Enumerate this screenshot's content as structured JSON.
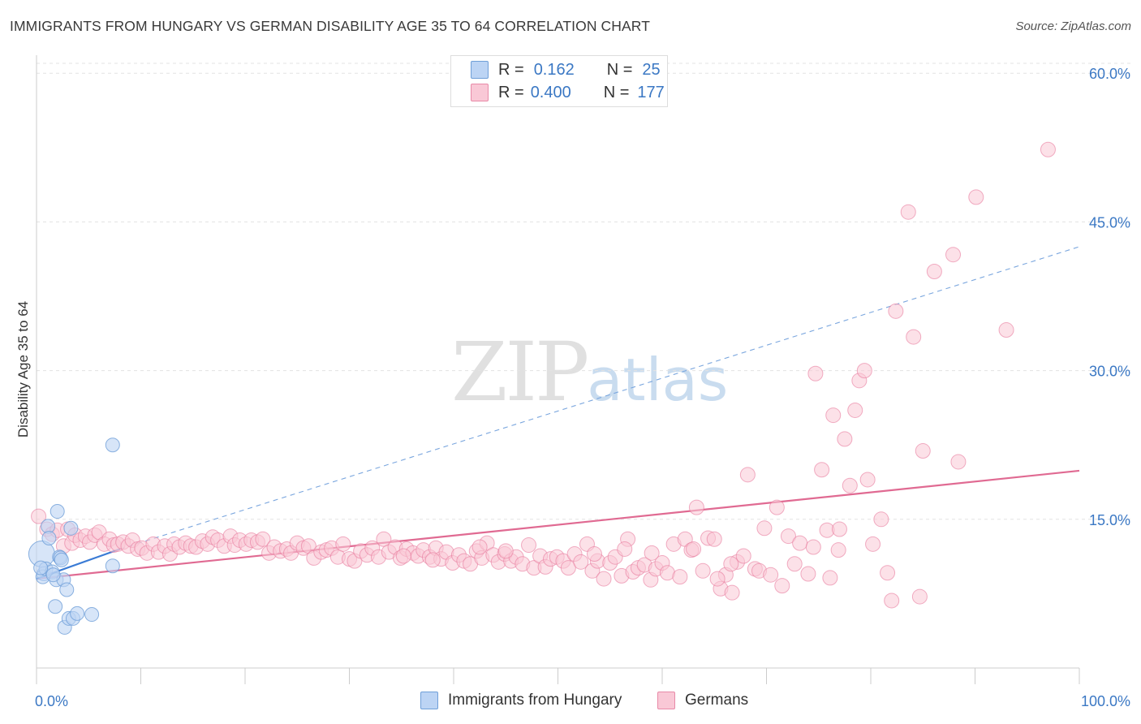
{
  "title": "IMMIGRANTS FROM HUNGARY VS GERMAN DISABILITY AGE 35 TO 64 CORRELATION CHART",
  "source": "Source: ZipAtlas.com",
  "watermark": {
    "zip": "ZIP",
    "atlas": "atlas"
  },
  "legend": {
    "rows": [
      {
        "r_label": "R =",
        "r_value": "0.162",
        "n_label": "N =",
        "n_value": "25",
        "fill": "#bcd4f4",
        "stroke": "#6f9fd8"
      },
      {
        "r_label": "R =",
        "r_value": "0.400",
        "n_label": "N =",
        "n_value": "177",
        "fill": "#f9c8d6",
        "stroke": "#e88aa8"
      }
    ]
  },
  "bottom_legend": [
    {
      "label": "Immigrants from Hungary",
      "fill": "#bcd4f4",
      "stroke": "#6f9fd8"
    },
    {
      "label": "Germans",
      "fill": "#f9c8d6",
      "stroke": "#e88aa8"
    }
  ],
  "chart_data": {
    "type": "scatter",
    "title": "IMMIGRANTS FROM HUNGARY VS GERMAN DISABILITY AGE 35 TO 64 CORRELATION CHART",
    "xlabel": "",
    "ylabel": "Disability Age 35 to 64",
    "xlim": [
      0,
      100
    ],
    "ylim": [
      0,
      61
    ],
    "x_tick_labels": [
      "0.0%",
      "100.0%"
    ],
    "y_ticks": [
      15,
      30,
      45,
      60
    ],
    "y_tick_labels": [
      "15.0%",
      "30.0%",
      "45.0%",
      "60.0%"
    ],
    "grid": true,
    "legend_placement": "top-center",
    "series": [
      {
        "name": "Immigrants from Hungary",
        "color": "#6f9fd8",
        "fill": "#bcd4f4",
        "trend": {
          "x": [
            0,
            8
          ],
          "y": [
            9.0,
            12.0
          ],
          "extended_to_x": 100,
          "extended_y": 42.5
        },
        "points": [
          [
            0.5,
            11.5
          ],
          [
            0.7,
            9.5
          ],
          [
            0.6,
            9.2
          ],
          [
            0.9,
            10.0
          ],
          [
            1.1,
            14.3
          ],
          [
            1.2,
            13.1
          ],
          [
            1.5,
            9.7
          ],
          [
            1.8,
            6.2
          ],
          [
            1.9,
            8.9
          ],
          [
            2.0,
            15.8
          ],
          [
            2.2,
            11.2
          ],
          [
            2.3,
            11.1
          ],
          [
            2.4,
            10.9
          ],
          [
            2.6,
            8.9
          ],
          [
            2.7,
            4.1
          ],
          [
            2.9,
            7.9
          ],
          [
            3.1,
            5.0
          ],
          [
            3.3,
            14.1
          ],
          [
            3.5,
            5.0
          ],
          [
            3.9,
            5.5
          ],
          [
            5.3,
            5.4
          ],
          [
            7.3,
            22.5
          ],
          [
            7.3,
            10.3
          ],
          [
            0.4,
            10.1
          ],
          [
            1.6,
            9.4
          ]
        ]
      },
      {
        "name": "Germans",
        "color": "#e87a9d",
        "fill": "#f9c8d6",
        "trend": {
          "x": [
            0,
            100
          ],
          "y": [
            9.0,
            19.9
          ]
        },
        "points": [
          [
            0.2,
            15.3
          ],
          [
            1.0,
            14.0
          ],
          [
            1.5,
            13.5
          ],
          [
            2.0,
            13.9
          ],
          [
            2.6,
            12.3
          ],
          [
            3.0,
            14.0
          ],
          [
            3.4,
            12.6
          ],
          [
            3.7,
            13.4
          ],
          [
            4.2,
            12.9
          ],
          [
            4.7,
            13.3
          ],
          [
            5.1,
            12.7
          ],
          [
            5.6,
            13.4
          ],
          [
            6.0,
            13.7
          ],
          [
            6.5,
            12.5
          ],
          [
            7.0,
            13.0
          ],
          [
            7.4,
            12.4
          ],
          [
            7.8,
            12.5
          ],
          [
            8.3,
            12.7
          ],
          [
            8.8,
            12.3
          ],
          [
            9.2,
            12.9
          ],
          [
            9.7,
            12.0
          ],
          [
            10.1,
            12.1
          ],
          [
            10.6,
            11.6
          ],
          [
            11.2,
            12.5
          ],
          [
            11.7,
            11.7
          ],
          [
            12.3,
            12.3
          ],
          [
            12.8,
            11.5
          ],
          [
            13.2,
            12.5
          ],
          [
            13.7,
            12.2
          ],
          [
            14.3,
            12.6
          ],
          [
            14.8,
            12.3
          ],
          [
            15.3,
            12.2
          ],
          [
            15.9,
            12.8
          ],
          [
            16.4,
            12.5
          ],
          [
            16.9,
            13.2
          ],
          [
            17.4,
            12.9
          ],
          [
            18.0,
            12.3
          ],
          [
            18.6,
            13.3
          ],
          [
            19.0,
            12.4
          ],
          [
            19.5,
            12.9
          ],
          [
            20.1,
            12.5
          ],
          [
            20.6,
            12.9
          ],
          [
            21.2,
            12.7
          ],
          [
            21.7,
            13.0
          ],
          [
            22.3,
            11.6
          ],
          [
            22.8,
            12.2
          ],
          [
            23.4,
            11.8
          ],
          [
            24.0,
            12.0
          ],
          [
            24.4,
            11.6
          ],
          [
            25.0,
            12.6
          ],
          [
            25.6,
            12.1
          ],
          [
            26.1,
            12.3
          ],
          [
            26.6,
            11.1
          ],
          [
            27.3,
            11.7
          ],
          [
            27.8,
            11.9
          ],
          [
            28.3,
            12.1
          ],
          [
            28.9,
            11.2
          ],
          [
            29.4,
            12.5
          ],
          [
            30.0,
            11.0
          ],
          [
            30.5,
            10.8
          ],
          [
            31.1,
            11.8
          ],
          [
            31.7,
            11.4
          ],
          [
            32.2,
            12.1
          ],
          [
            32.8,
            11.2
          ],
          [
            33.3,
            13.0
          ],
          [
            33.8,
            11.7
          ],
          [
            34.4,
            12.2
          ],
          [
            34.9,
            11.1
          ],
          [
            35.5,
            12.0
          ],
          [
            36.1,
            11.6
          ],
          [
            36.6,
            11.3
          ],
          [
            37.1,
            11.9
          ],
          [
            37.7,
            11.2
          ],
          [
            38.3,
            12.1
          ],
          [
            38.8,
            11.0
          ],
          [
            39.3,
            11.7
          ],
          [
            39.9,
            10.6
          ],
          [
            40.5,
            11.4
          ],
          [
            41.0,
            10.8
          ],
          [
            41.6,
            10.5
          ],
          [
            42.2,
            11.8
          ],
          [
            42.7,
            11.1
          ],
          [
            43.2,
            12.6
          ],
          [
            43.8,
            11.4
          ],
          [
            44.3,
            10.7
          ],
          [
            44.9,
            11.5
          ],
          [
            45.5,
            10.8
          ],
          [
            46.0,
            11.2
          ],
          [
            46.6,
            10.5
          ],
          [
            47.2,
            12.4
          ],
          [
            47.7,
            10.1
          ],
          [
            48.3,
            11.3
          ],
          [
            48.8,
            10.2
          ],
          [
            49.3,
            11.0
          ],
          [
            49.9,
            11.2
          ],
          [
            50.5,
            10.8
          ],
          [
            51.0,
            10.1
          ],
          [
            51.6,
            11.5
          ],
          [
            52.2,
            10.7
          ],
          [
            52.8,
            12.5
          ],
          [
            53.3,
            9.8
          ],
          [
            53.8,
            10.8
          ],
          [
            54.4,
            9.0
          ],
          [
            55.0,
            10.6
          ],
          [
            55.5,
            11.2
          ],
          [
            56.1,
            9.3
          ],
          [
            56.7,
            13.0
          ],
          [
            57.2,
            9.7
          ],
          [
            57.7,
            10.1
          ],
          [
            58.3,
            10.4
          ],
          [
            58.9,
            8.9
          ],
          [
            59.4,
            10.0
          ],
          [
            60.0,
            10.6
          ],
          [
            60.5,
            9.6
          ],
          [
            61.1,
            12.5
          ],
          [
            61.7,
            9.2
          ],
          [
            62.2,
            13.0
          ],
          [
            62.8,
            11.9
          ],
          [
            63.3,
            16.2
          ],
          [
            63.9,
            9.8
          ],
          [
            64.4,
            13.1
          ],
          [
            65.0,
            13.0
          ],
          [
            65.6,
            8.0
          ],
          [
            66.1,
            9.4
          ],
          [
            66.7,
            7.6
          ],
          [
            67.2,
            10.7
          ],
          [
            67.8,
            11.3
          ],
          [
            68.2,
            19.5
          ],
          [
            68.9,
            10.0
          ],
          [
            69.3,
            9.8
          ],
          [
            69.8,
            14.1
          ],
          [
            70.4,
            9.4
          ],
          [
            71.0,
            16.2
          ],
          [
            71.5,
            8.3
          ],
          [
            72.1,
            13.3
          ],
          [
            72.7,
            10.5
          ],
          [
            73.2,
            12.6
          ],
          [
            74.0,
            9.5
          ],
          [
            74.7,
            29.7
          ],
          [
            75.3,
            20.0
          ],
          [
            75.8,
            13.9
          ],
          [
            76.4,
            25.5
          ],
          [
            76.9,
            11.9
          ],
          [
            77.5,
            23.1
          ],
          [
            78.0,
            18.4
          ],
          [
            78.5,
            26.0
          ],
          [
            78.9,
            29.0
          ],
          [
            79.4,
            30.0
          ],
          [
            79.7,
            19.0
          ],
          [
            80.2,
            12.5
          ],
          [
            81.0,
            15.0
          ],
          [
            81.6,
            9.6
          ],
          [
            82.0,
            6.8
          ],
          [
            82.4,
            36.0
          ],
          [
            83.6,
            46.0
          ],
          [
            84.1,
            33.4
          ],
          [
            84.7,
            7.2
          ],
          [
            85.0,
            21.9
          ],
          [
            86.1,
            40.0
          ],
          [
            87.9,
            41.7
          ],
          [
            88.4,
            20.8
          ],
          [
            90.1,
            47.5
          ],
          [
            93.0,
            34.1
          ],
          [
            97.0,
            52.3
          ],
          [
            74.5,
            12.2
          ],
          [
            76.1,
            9.1
          ],
          [
            77.0,
            14.0
          ],
          [
            65.3,
            9.0
          ],
          [
            63.0,
            12.0
          ],
          [
            66.6,
            10.5
          ],
          [
            59.0,
            11.6
          ],
          [
            56.4,
            12.0
          ],
          [
            53.5,
            11.5
          ],
          [
            45.0,
            11.8
          ],
          [
            42.5,
            12.2
          ],
          [
            38.0,
            10.9
          ],
          [
            35.2,
            11.3
          ]
        ]
      }
    ]
  }
}
